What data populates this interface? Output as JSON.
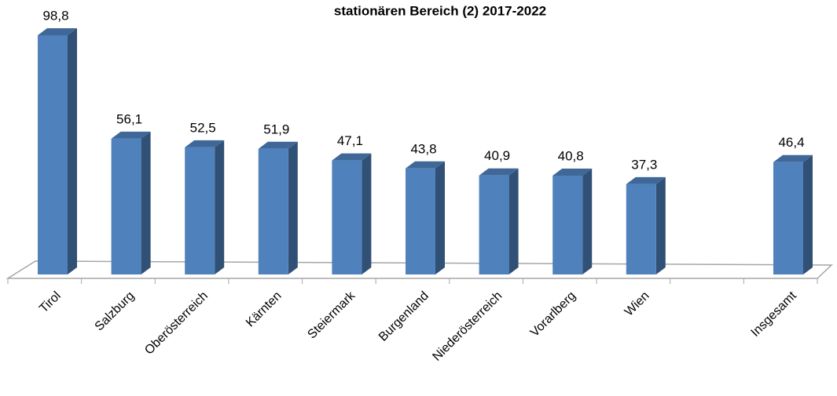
{
  "chart_data": {
    "type": "bar3d",
    "title": "stationären Bereich (2) 2017-2022",
    "categories": [
      "Tirol",
      "Salzburg",
      "Oberösterreich",
      "Kärnten",
      "Steiermark",
      "Burgenland",
      "Niederösterreich",
      "Vorarlberg",
      "Wien",
      null,
      "Insgesamt"
    ],
    "values": [
      98.8,
      56.1,
      52.5,
      51.9,
      47.1,
      43.8,
      40.9,
      40.8,
      37.3,
      null,
      46.4
    ],
    "value_labels": [
      "98,8",
      "56,1",
      "52,5",
      "51,9",
      "47,1",
      "43,8",
      "40,9",
      "40,8",
      "37,3",
      null,
      "46,4"
    ],
    "color": "#4f81bd"
  }
}
